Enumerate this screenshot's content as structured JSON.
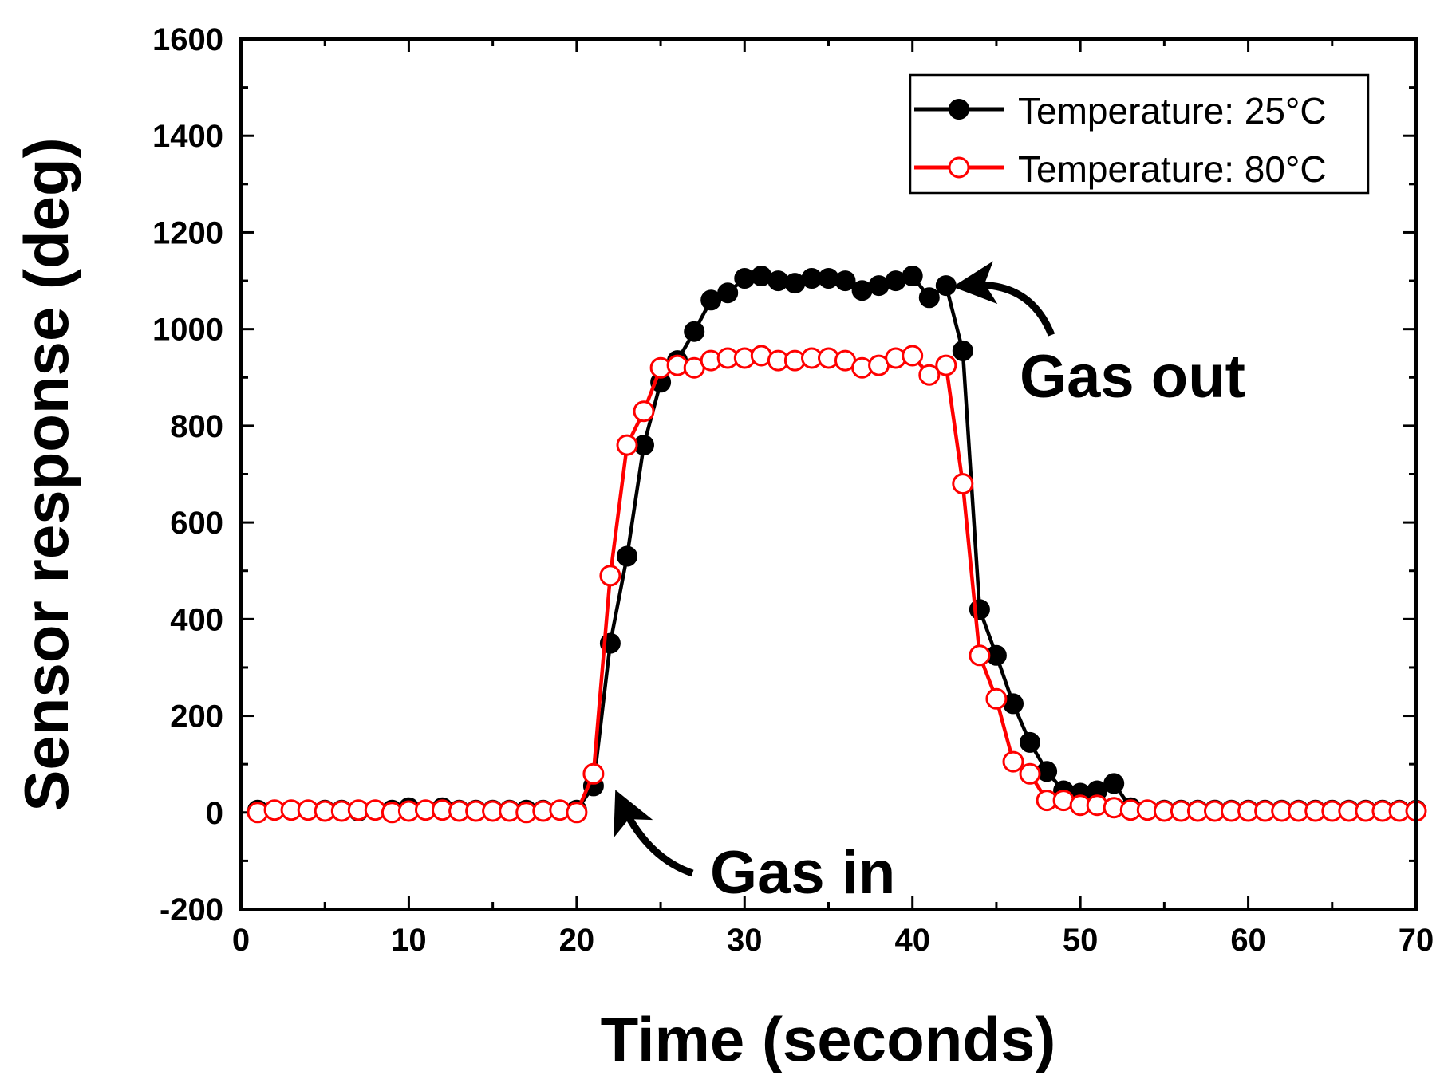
{
  "chart_data": {
    "type": "line",
    "title": "",
    "xlabel": "Time (seconds)",
    "ylabel": "Sensor response (deg)",
    "xlim": [
      0,
      70
    ],
    "ylim": [
      -200,
      1600
    ],
    "xticks": [
      0,
      10,
      20,
      30,
      40,
      50,
      60,
      70
    ],
    "yticks": [
      -200,
      0,
      200,
      400,
      600,
      800,
      1000,
      1200,
      1400,
      1600
    ],
    "grid": false,
    "legend_position": "top-right",
    "series": [
      {
        "name": "Temperature: 25°C",
        "color": "#000000",
        "marker": "filled-circle",
        "x": [
          1,
          2,
          3,
          4,
          5,
          6,
          7,
          8,
          9,
          10,
          11,
          12,
          13,
          14,
          15,
          16,
          17,
          18,
          19,
          20,
          21,
          22,
          23,
          24,
          25,
          26,
          27,
          28,
          29,
          30,
          31,
          32,
          33,
          34,
          35,
          36,
          37,
          38,
          39,
          40,
          41,
          42,
          43,
          44,
          45,
          46,
          47,
          48,
          49,
          50,
          51,
          52,
          53,
          54,
          55,
          56,
          57,
          58,
          59,
          60,
          61,
          62,
          63,
          64,
          65,
          66,
          67,
          68,
          69,
          70
        ],
        "y": [
          5,
          5,
          5,
          5,
          5,
          5,
          3,
          5,
          5,
          10,
          5,
          10,
          5,
          5,
          5,
          5,
          5,
          5,
          5,
          5,
          55,
          350,
          530,
          760,
          890,
          935,
          995,
          1060,
          1075,
          1105,
          1110,
          1100,
          1095,
          1105,
          1105,
          1100,
          1080,
          1090,
          1100,
          1110,
          1065,
          1090,
          955,
          420,
          325,
          225,
          145,
          85,
          45,
          40,
          45,
          60,
          10,
          5,
          5,
          5,
          5,
          5,
          5,
          5,
          5,
          5,
          5,
          5,
          5,
          5,
          5,
          5,
          5,
          5
        ]
      },
      {
        "name": "Temperature: 80°C",
        "color": "#ff0000",
        "marker": "open-circle",
        "x": [
          1,
          2,
          3,
          4,
          5,
          6,
          7,
          8,
          9,
          10,
          11,
          12,
          13,
          14,
          15,
          16,
          17,
          18,
          19,
          20,
          21,
          22,
          23,
          24,
          25,
          26,
          27,
          28,
          29,
          30,
          31,
          32,
          33,
          34,
          35,
          36,
          37,
          38,
          39,
          40,
          41,
          42,
          43,
          44,
          45,
          46,
          47,
          48,
          49,
          50,
          51,
          52,
          53,
          54,
          55,
          56,
          57,
          58,
          59,
          60,
          61,
          62,
          63,
          64,
          65,
          66,
          67,
          68,
          69,
          70
        ],
        "y": [
          0,
          5,
          5,
          5,
          3,
          3,
          5,
          5,
          0,
          3,
          5,
          5,
          3,
          3,
          3,
          3,
          0,
          3,
          5,
          0,
          80,
          490,
          760,
          830,
          920,
          925,
          920,
          935,
          940,
          940,
          945,
          935,
          935,
          940,
          940,
          935,
          920,
          925,
          940,
          945,
          905,
          925,
          680,
          325,
          235,
          105,
          80,
          25,
          25,
          15,
          15,
          10,
          5,
          5,
          3,
          3,
          3,
          3,
          3,
          3,
          3,
          3,
          3,
          3,
          3,
          3,
          3,
          3,
          3,
          3
        ]
      }
    ],
    "annotations": [
      {
        "text": "Gas out",
        "points_to": {
          "x": 42,
          "y": 1090
        }
      },
      {
        "text": "Gas in",
        "points_to": {
          "x": 21,
          "y": 40
        }
      }
    ]
  }
}
